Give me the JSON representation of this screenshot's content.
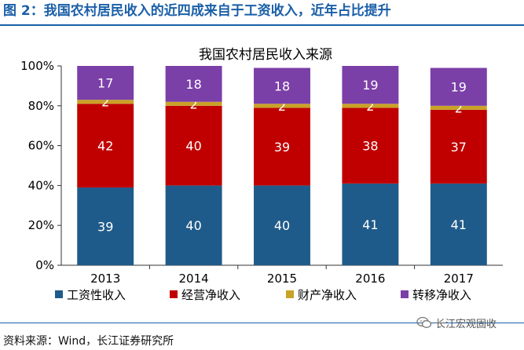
{
  "header": {
    "title": "图 2：我国农村居民收入的近四成来自于工资收入，近年占比提升"
  },
  "footer": {
    "source": "资料来源：Wind，长江证券研究所",
    "watermark": "长江宏观固收"
  },
  "chart_data": {
    "type": "bar",
    "stacked": true,
    "title": "我国农村居民收入来源",
    "categories": [
      "2013",
      "2014",
      "2015",
      "2016",
      "2017"
    ],
    "series": [
      {
        "name": "工资性收入",
        "color": "#1f5b8a",
        "values": [
          39,
          40,
          40,
          41,
          41
        ]
      },
      {
        "name": "经营净收入",
        "color": "#c00000",
        "values": [
          42,
          40,
          39,
          38,
          37
        ]
      },
      {
        "name": "财产净收入",
        "color": "#c9a227",
        "values": [
          2,
          2,
          2,
          2,
          2
        ]
      },
      {
        "name": "转移净收入",
        "color": "#7b3fa8",
        "values": [
          17,
          18,
          18,
          19,
          19
        ]
      }
    ],
    "ylim": [
      0,
      100
    ],
    "yticks": [
      "0%",
      "20%",
      "40%",
      "60%",
      "80%",
      "100%"
    ],
    "grid": false,
    "legend": "bottom",
    "data_labels": true
  }
}
